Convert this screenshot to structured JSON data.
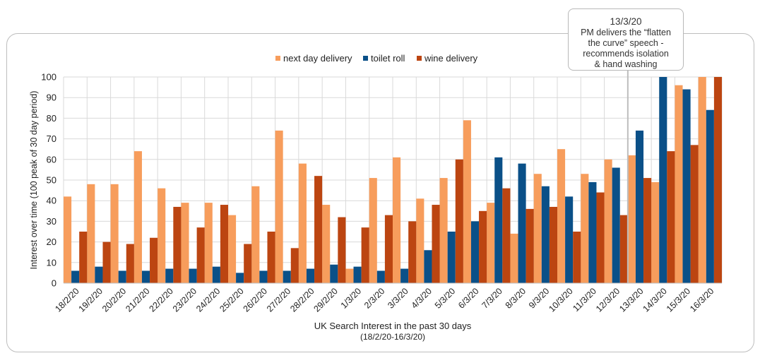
{
  "chart_data": {
    "type": "bar",
    "xlabel": "UK Search Interest in the past 30 days",
    "xlabel_sub": "(18/2/20-16/3/20)",
    "ylabel": "Interest over time (100 peak of 30 day period)",
    "ylim": [
      0,
      100
    ],
    "yticks": [
      0,
      10,
      20,
      30,
      40,
      50,
      60,
      70,
      80,
      90,
      100
    ],
    "grid": true,
    "legend_position": "top-center",
    "categories": [
      "18/2/20",
      "19/2/20",
      "20/2/20",
      "21/2/20",
      "22/2/20",
      "23/2/20",
      "24/2/20",
      "25/2/20",
      "26/2/20",
      "27/2/20",
      "28/2/20",
      "29/2/20",
      "1/3/20",
      "2/3/20",
      "3/3/20",
      "4/3/20",
      "5/3/20",
      "6/3/20",
      "7/3/20",
      "8/3/20",
      "9/3/20",
      "10/3/20",
      "11/3/20",
      "12/3/20",
      "13/3/20",
      "14/3/20",
      "15/3/20",
      "16/3/20"
    ],
    "series": [
      {
        "name": "next day delivery",
        "color": "#f79d5c",
        "values": [
          42,
          48,
          48,
          64,
          46,
          39,
          39,
          33,
          47,
          74,
          58,
          38,
          7,
          51,
          61,
          41,
          51,
          79,
          39,
          24,
          53,
          65,
          53,
          60,
          62,
          49,
          96,
          100
        ]
      },
      {
        "name": "toilet roll",
        "color": "#0a5088",
        "values": [
          6,
          8,
          6,
          6,
          7,
          7,
          8,
          5,
          6,
          6,
          7,
          9,
          8,
          6,
          7,
          16,
          25,
          30,
          61,
          58,
          47,
          42,
          49,
          56,
          74,
          100,
          94,
          84
        ]
      },
      {
        "name": "wine delivery",
        "color": "#bc4511",
        "values": [
          25,
          20,
          19,
          22,
          37,
          27,
          38,
          19,
          25,
          17,
          52,
          32,
          27,
          33,
          30,
          38,
          60,
          35,
          46,
          36,
          37,
          25,
          44,
          33,
          51,
          64,
          67,
          100
        ]
      }
    ],
    "annotation": {
      "category": "13/3/20",
      "date": "13/3/20",
      "text": "PM delivers the “flatten\nthe curve” speech -\nrecommends isolation\n& hand washing"
    }
  }
}
